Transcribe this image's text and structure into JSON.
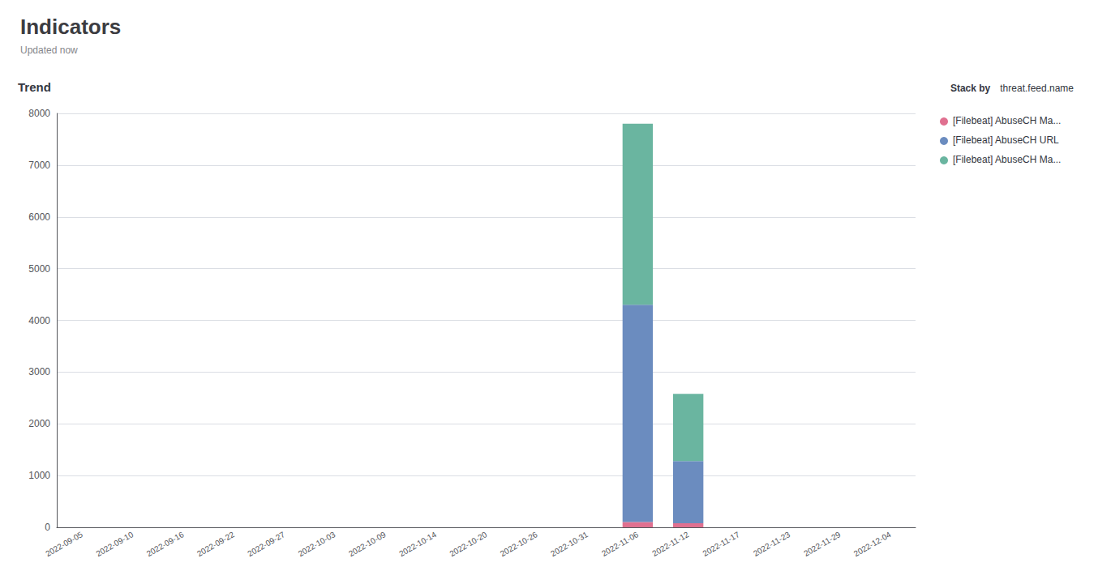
{
  "chart_data": {
    "type": "bar",
    "title": "Indicators",
    "subtitle": "Updated now",
    "annotations": [
      "Trend",
      "Stack by",
      "threat.feed.name"
    ],
    "categories": [
      "2022-09-05",
      "2022-09-10",
      "2022-09-16",
      "2022-09-22",
      "2022-09-27",
      "2022-10-03",
      "2022-10-09",
      "2022-10-14",
      "2022-10-20",
      "2022-10-26",
      "2022-10-31",
      "2022-11-06",
      "2022-11-12",
      "2022-11-17",
      "2022-11-23",
      "2022-11-29",
      "2022-12-04"
    ],
    "series": [
      {
        "name": "[Filebeat] AbuseCH Ma...",
        "color": "#e07090",
        "values": [
          0,
          0,
          0,
          0,
          0,
          0,
          0,
          0,
          0,
          0,
          0,
          100,
          80,
          0,
          0,
          0,
          0
        ]
      },
      {
        "name": "[Filebeat] AbuseCH URL",
        "color": "#6b8cbf",
        "values": [
          0,
          0,
          0,
          0,
          0,
          0,
          0,
          0,
          0,
          0,
          0,
          4200,
          1200,
          0,
          0,
          0,
          0
        ]
      },
      {
        "name": "[Filebeat] AbuseCH Ma...",
        "color": "#6ab5a0",
        "values": [
          0,
          0,
          0,
          0,
          0,
          0,
          0,
          0,
          0,
          0,
          0,
          3500,
          1300,
          0,
          0,
          0,
          0
        ]
      }
    ],
    "stacked": true,
    "ylim": [
      0,
      8000
    ],
    "yticks": [
      0,
      1000,
      2000,
      3000,
      4000,
      5000,
      6000,
      7000,
      8000
    ],
    "grid": true,
    "legend": "right"
  }
}
